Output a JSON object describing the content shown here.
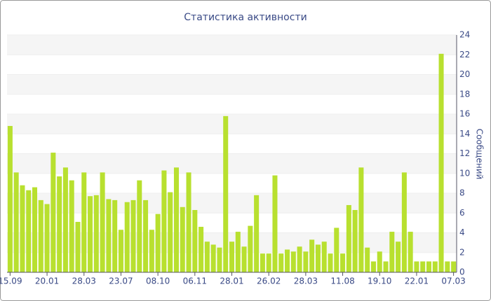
{
  "chart_data": {
    "type": "bar",
    "title": "Статистика активности",
    "y_axis_label": "Сообщений",
    "categories": [
      "15.09",
      null,
      null,
      null,
      null,
      null,
      "20.01",
      null,
      null,
      null,
      null,
      null,
      "28.03",
      null,
      null,
      null,
      null,
      null,
      "23.07",
      null,
      null,
      null,
      null,
      null,
      "08.10",
      null,
      null,
      null,
      null,
      null,
      "06.11",
      null,
      null,
      null,
      null,
      null,
      "28.01",
      null,
      null,
      null,
      null,
      null,
      "26.02",
      null,
      null,
      null,
      null,
      null,
      "28.03",
      null,
      null,
      null,
      null,
      null,
      "11.08",
      null,
      null,
      null,
      null,
      null,
      "19.10",
      null,
      null,
      null,
      null,
      null,
      "22.01",
      null,
      null,
      null,
      null,
      null,
      "07.03"
    ],
    "values": [
      14.8,
      10.1,
      8.8,
      8.3,
      8.6,
      7.3,
      6.9,
      12.1,
      9.7,
      10.6,
      9.3,
      5.1,
      10.1,
      7.7,
      7.8,
      10.1,
      7.4,
      7.3,
      4.3,
      7.1,
      7.3,
      9.3,
      7.3,
      4.3,
      5.9,
      10.3,
      8.1,
      10.6,
      6.6,
      10.1,
      6.3,
      4.6,
      3.1,
      2.8,
      2.5,
      15.8,
      3.1,
      4.1,
      2.6,
      4.7,
      7.8,
      1.9,
      1.9,
      9.8,
      1.9,
      2.3,
      2.1,
      2.6,
      2.1,
      3.3,
      2.8,
      3.1,
      1.9,
      4.5,
      1.9,
      6.8,
      6.3,
      10.6,
      2.5,
      1.1,
      2.1,
      1.1,
      4.1,
      3.1,
      10.1,
      4.1,
      1.1,
      1.1,
      1.1,
      1.1,
      22.1,
      1.1,
      1.1
    ],
    "color": "#b8e02f",
    "ylim": [
      0,
      24
    ],
    "yticks": [
      0,
      2,
      4,
      6,
      8,
      10,
      12,
      14,
      16,
      18,
      20,
      22,
      24
    ],
    "grid": true,
    "y_axis_side": "right"
  }
}
